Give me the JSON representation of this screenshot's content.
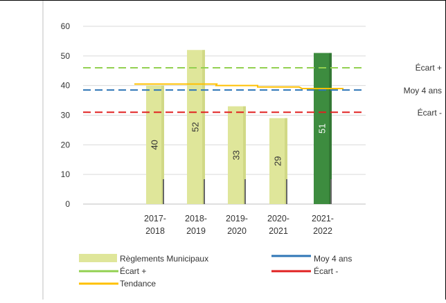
{
  "chart_data": {
    "type": "bar",
    "categories": [
      [
        "2017-",
        "2018"
      ],
      [
        "2018-",
        "2019"
      ],
      [
        "2019-",
        "2020"
      ],
      [
        "2020-",
        "2021"
      ],
      [
        "2021-",
        "2022"
      ]
    ],
    "series": [
      {
        "name": "Règlements Municipaux",
        "values": [
          40,
          52,
          33,
          29,
          51
        ],
        "colors": [
          "#dfe69a",
          "#dfe69a",
          "#dfe69a",
          "#dfe69a",
          "#3d8c3f"
        ],
        "data_labels": [
          "40",
          "52",
          "33",
          "29",
          "51"
        ],
        "data_label_colors": [
          "#333333",
          "#333333",
          "#333333",
          "#333333",
          "#ffffff"
        ]
      },
      {
        "name": "Moy 4 ans",
        "type": "line",
        "style": "dashed",
        "value": 38.5,
        "color": "#2e75b6",
        "label": "Moy 4 ans"
      },
      {
        "name": "Écart +",
        "type": "line",
        "style": "dashed",
        "value": 46,
        "color": "#92d050",
        "label": "Écart +"
      },
      {
        "name": "Écart -",
        "type": "line",
        "style": "dashed",
        "value": 31,
        "color": "#e02020",
        "label": "Écart -"
      },
      {
        "name": "Tendance",
        "type": "line",
        "style": "solid",
        "values": [
          40.5,
          40.5,
          40,
          39.5,
          39
        ],
        "color": "#ffc000"
      }
    ],
    "y_ticks": [
      "0",
      "10",
      "20",
      "30",
      "40",
      "50",
      "60"
    ],
    "ylim": [
      0,
      60
    ],
    "grid": true,
    "legend": {
      "position": "bottom",
      "items": [
        {
          "label": "Règlements Municipaux",
          "swatch": "bar",
          "color": "#dfe69a"
        },
        {
          "label": "Moy 4 ans",
          "swatch": "line",
          "color": "#2e75b6"
        },
        {
          "label": "Écart +",
          "swatch": "line",
          "color": "#92d050"
        },
        {
          "label": "Écart -",
          "swatch": "line",
          "color": "#e02020"
        },
        {
          "label": "Tendance",
          "swatch": "line",
          "color": "#ffc000"
        }
      ]
    }
  }
}
